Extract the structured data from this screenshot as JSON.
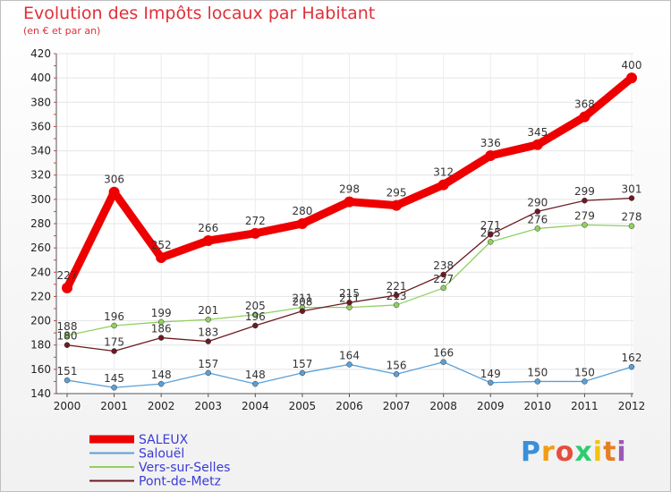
{
  "chart_data": {
    "type": "line",
    "title": "Evolution des Impôts locaux par Habitant",
    "subtitle": "(en € et par an)",
    "x": [
      2000,
      2001,
      2002,
      2003,
      2004,
      2005,
      2006,
      2007,
      2008,
      2009,
      2010,
      2011,
      2012
    ],
    "ylim": [
      140,
      420
    ],
    "yticks": [
      140,
      160,
      180,
      200,
      220,
      240,
      260,
      280,
      300,
      320,
      340,
      360,
      380,
      400,
      420
    ],
    "grid": true,
    "legend_position": "bottom-left",
    "series": [
      {
        "name": "SALEUX",
        "color": "#ee0000",
        "values": [
          227,
          306,
          252,
          266,
          272,
          280,
          298,
          295,
          312,
          336,
          345,
          368,
          400
        ]
      },
      {
        "name": "Salouël",
        "color": "#5aa0d8",
        "values": [
          151,
          145,
          148,
          157,
          148,
          157,
          164,
          156,
          166,
          149,
          150,
          150,
          162
        ]
      },
      {
        "name": "Vers-sur-Selles",
        "color": "#90d060",
        "values": [
          188,
          196,
          199,
          201,
          205,
          211,
          211,
          213,
          227,
          265,
          276,
          279,
          278
        ]
      },
      {
        "name": "Pont-de-Metz",
        "color": "#6b1a22",
        "values": [
          180,
          175,
          186,
          183,
          196,
          208,
          215,
          221,
          238,
          271,
          290,
          299,
          301
        ]
      }
    ]
  },
  "logo": {
    "letters": [
      "P",
      "r",
      "o",
      "x",
      "i",
      "t",
      "i"
    ],
    "colors": [
      "#3a8fd8",
      "#f39c12",
      "#e74c3c",
      "#2ecc71",
      "#f1c40f",
      "#e67e22",
      "#9b59b6"
    ]
  }
}
